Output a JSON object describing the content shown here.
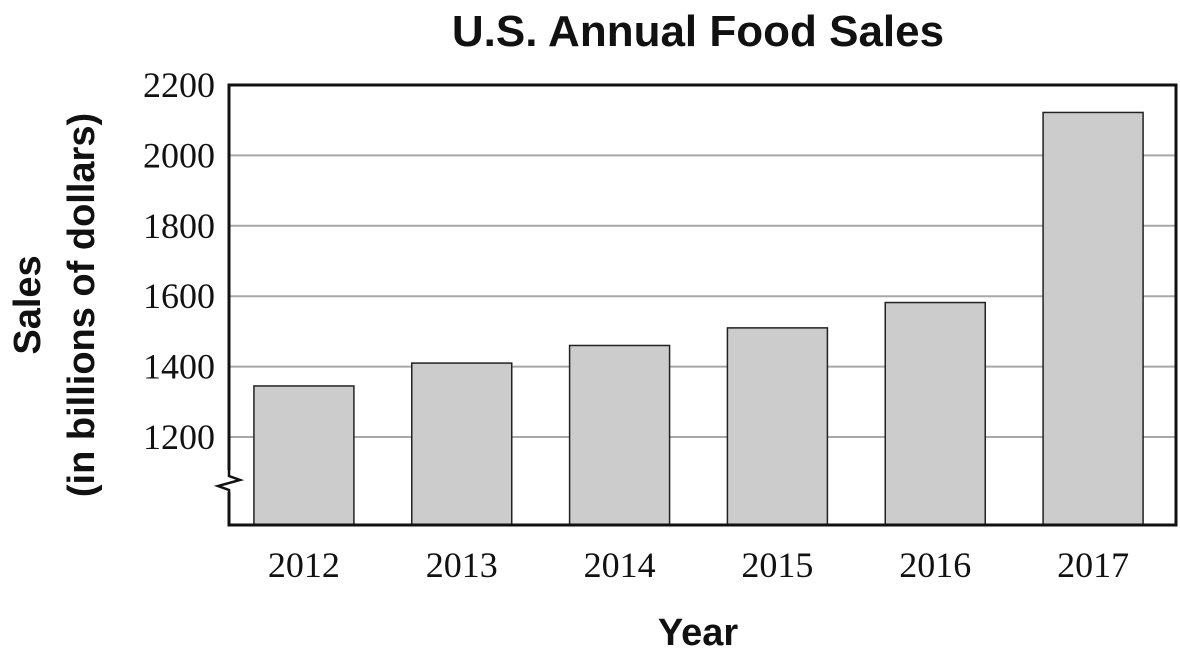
{
  "chart_data": {
    "type": "bar",
    "title": "U.S. Annual Food Sales",
    "xlabel": "Year",
    "ylabel_line1": "Sales",
    "ylabel_line2": "(in billions of dollars)",
    "categories": [
      "2012",
      "2013",
      "2014",
      "2015",
      "2016",
      "2017"
    ],
    "values": [
      1345,
      1410,
      1460,
      1510,
      1582,
      2122
    ],
    "ylim": [
      950,
      2200
    ],
    "y_ticks": [
      1200,
      1400,
      1600,
      1800,
      2000,
      2200
    ],
    "axis_break": true,
    "grid": true,
    "bar_color": "#cccccc"
  }
}
